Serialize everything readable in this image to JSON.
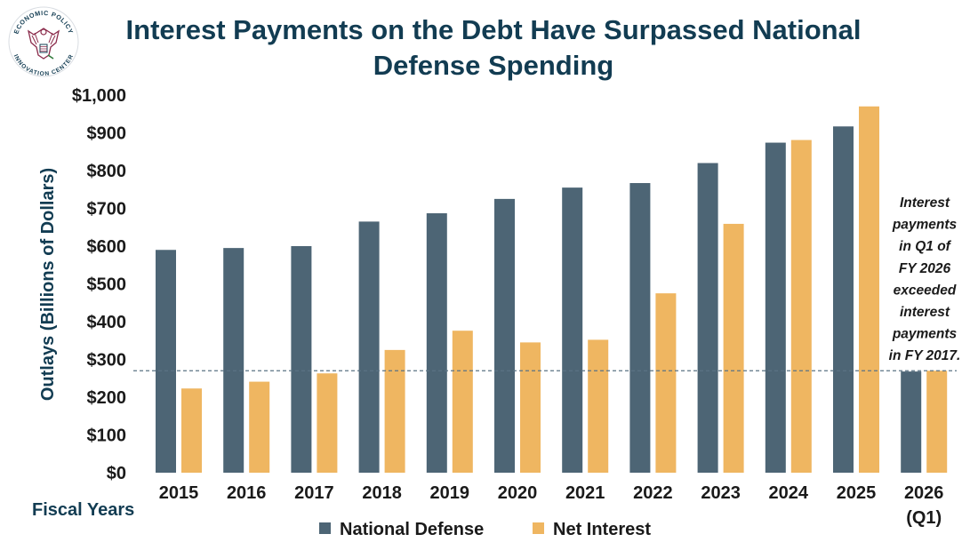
{
  "header": {
    "title": "Interest Payments on the Debt Have Surpassed National Defense Spending",
    "logo": {
      "text_top": "ECONOMIC POLICY",
      "text_bottom": "INNOVATION CENTER",
      "icon": "eagle-seal-icon"
    }
  },
  "colors": {
    "title": "#123c52",
    "national_defense": "#4d6575",
    "net_interest": "#efb661",
    "reference_line": "#5b7384"
  },
  "chart_data": {
    "type": "bar",
    "title": "Interest Payments on the Debt Have Surpassed National Defense Spending",
    "xlabel": "Fiscal Years",
    "ylabel": "Outlays (Billions of Dollars)",
    "ylim": [
      0,
      1000
    ],
    "yticks": [
      "$0",
      "$100",
      "$200",
      "$300",
      "$400",
      "$500",
      "$600",
      "$700",
      "$800",
      "$900",
      "$1,000"
    ],
    "categories": [
      "2015",
      "2016",
      "2017",
      "2018",
      "2019",
      "2020",
      "2021",
      "2022",
      "2023",
      "2024",
      "2025",
      "2026 (Q1)"
    ],
    "series": [
      {
        "name": "National Defense",
        "values": [
          590,
          595,
          600,
          665,
          687,
          725,
          755,
          767,
          820,
          874,
          917,
          268
        ]
      },
      {
        "name": "Net Interest",
        "values": [
          223,
          241,
          263,
          325,
          376,
          345,
          352,
          475,
          659,
          881,
          970,
          270
        ]
      }
    ],
    "reference_line": {
      "value": 270,
      "style": "dashed"
    },
    "annotation": {
      "lines": [
        "Interest",
        "payments",
        "in Q1 of",
        "FY 2026",
        "exceeded",
        "interest",
        "payments",
        "in FY 2017."
      ]
    },
    "legend": {
      "position": "bottom",
      "entries": [
        "National Defense",
        "Net Interest"
      ]
    },
    "grid": false
  }
}
